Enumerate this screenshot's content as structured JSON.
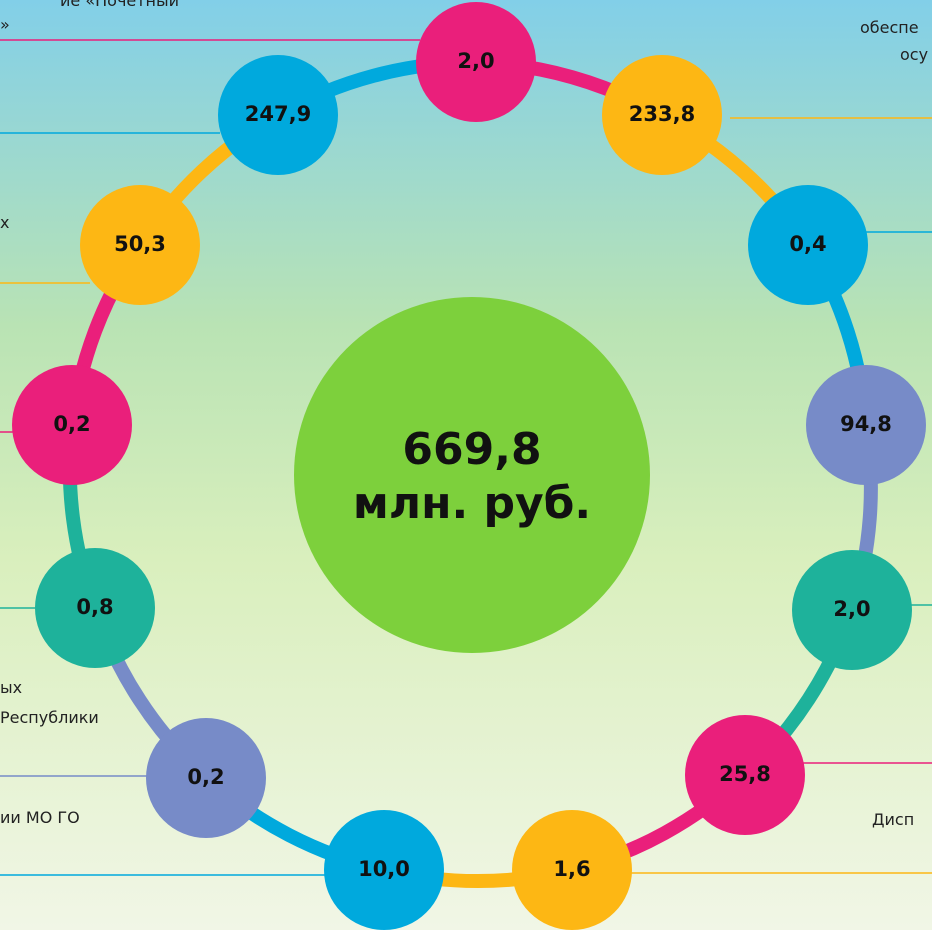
{
  "total": {
    "value": "669,8",
    "unit": "млн. руб."
  },
  "nodes": [
    {
      "label": "2,0",
      "color": "#ea1f7b"
    },
    {
      "label": "233,8",
      "color": "#fdb714"
    },
    {
      "label": "0,4",
      "color": "#00a9dd"
    },
    {
      "label": "94,8",
      "color": "#778bc8"
    },
    {
      "label": "2,0",
      "color": "#1eb29b"
    },
    {
      "label": "25,8",
      "color": "#ea1f7b"
    },
    {
      "label": "1,6",
      "color": "#fdb714"
    },
    {
      "label": "10,0",
      "color": "#00a9dd"
    },
    {
      "label": "0,2",
      "color": "#778bc8"
    },
    {
      "label": "0,8",
      "color": "#1eb29b"
    },
    {
      "label": "0,2",
      "color": "#ea1f7b"
    },
    {
      "label": "50,3",
      "color": "#fdb714"
    },
    {
      "label": "247,9",
      "color": "#00a9dd"
    }
  ],
  "fragments": [
    "ие «Почетный",
    "»",
    "х",
    "ых",
    "Республики",
    "ии МО ГО",
    "обеспе",
    "осу",
    "Дисп"
  ]
}
